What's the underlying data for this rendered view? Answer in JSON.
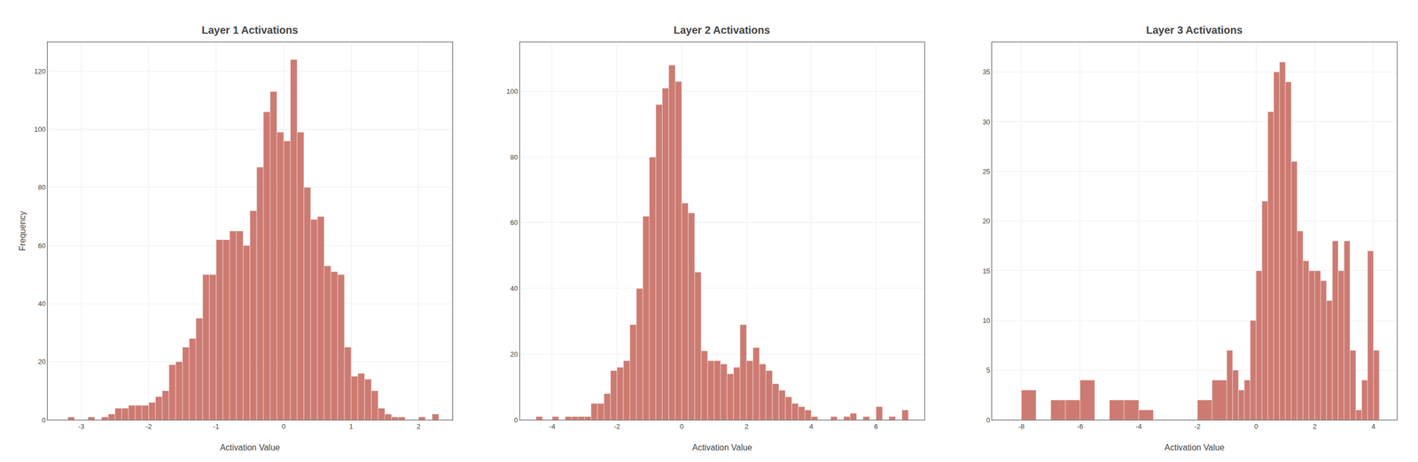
{
  "chart_data": [
    {
      "type": "bar",
      "title": "Layer 1 Activations",
      "xlabel": "Activation Value",
      "ylabel": "Frequency",
      "x": [
        -3.2,
        -3.0,
        -2.9,
        -2.8,
        -2.7,
        -2.6,
        -2.5,
        -2.4,
        -2.3,
        -2.2,
        -2.1,
        -2.0,
        -1.9,
        -1.8,
        -1.7,
        -1.6,
        -1.5,
        -1.4,
        -1.3,
        -1.2,
        -1.1,
        -1.0,
        -0.9,
        -0.8,
        -0.7,
        -0.6,
        -0.5,
        -0.4,
        -0.3,
        -0.2,
        -0.1,
        0.0,
        0.1,
        0.2,
        0.3,
        0.4,
        0.5,
        0.6,
        0.7,
        0.8,
        0.9,
        1.0,
        1.1,
        1.2,
        1.3,
        1.4,
        1.5,
        1.6,
        1.7,
        1.8,
        1.9,
        2.0,
        2.1,
        2.2
      ],
      "values": [
        1,
        0,
        1,
        0,
        1,
        2,
        4,
        4,
        5,
        5,
        5,
        6,
        8,
        10,
        19,
        20,
        25,
        28,
        35,
        50,
        50,
        62,
        62,
        65,
        65,
        60,
        72,
        87,
        106,
        113,
        99,
        96,
        124,
        99,
        80,
        69,
        70,
        53,
        51,
        50,
        25,
        15,
        16,
        14,
        10,
        4,
        2,
        1,
        1,
        0,
        0,
        1,
        0,
        2
      ],
      "widths": [
        0.1,
        0.1,
        0.1,
        0.1,
        0.1,
        0.1,
        0.1,
        0.1,
        0.1,
        0.1,
        0.1,
        0.1,
        0.1,
        0.1,
        0.1,
        0.1,
        0.1,
        0.1,
        0.1,
        0.1,
        0.1,
        0.1,
        0.1,
        0.1,
        0.1,
        0.1,
        0.1,
        0.1,
        0.1,
        0.1,
        0.1,
        0.1,
        0.1,
        0.1,
        0.1,
        0.1,
        0.1,
        0.1,
        0.1,
        0.1,
        0.1,
        0.1,
        0.1,
        0.1,
        0.1,
        0.1,
        0.1,
        0.1,
        0.1,
        0.1,
        0.1,
        0.1,
        0.1,
        0.1
      ],
      "color": "#CD7B72",
      "xlim": [
        -3.5,
        2.5
      ],
      "ylim": [
        0,
        130
      ],
      "xticks": [
        -3,
        -2,
        -1,
        0,
        1,
        2
      ],
      "yticks": [
        0,
        20,
        40,
        60,
        80,
        100,
        120
      ],
      "grid": true
    },
    {
      "type": "bar",
      "title": "Layer 2 Activations",
      "xlabel": "Activation Value",
      "x": [
        -4.5,
        -4.2,
        -4.0,
        -3.8,
        -3.6,
        -3.4,
        -3.2,
        -3.0,
        -2.8,
        -2.6,
        -2.4,
        -2.2,
        -2.0,
        -1.8,
        -1.6,
        -1.4,
        -1.2,
        -1.0,
        -0.8,
        -0.6,
        -0.4,
        -0.2,
        0.0,
        0.2,
        0.4,
        0.6,
        0.8,
        1.0,
        1.2,
        1.4,
        1.6,
        1.8,
        2.0,
        2.2,
        2.4,
        2.6,
        2.8,
        3.0,
        3.2,
        3.4,
        3.6,
        3.8,
        4.0,
        4.2,
        4.4,
        4.6,
        4.8,
        5.0,
        5.2,
        5.4,
        5.6,
        5.8,
        6.0,
        6.2,
        6.4,
        6.6,
        6.8
      ],
      "values": [
        1,
        0,
        1,
        0,
        1,
        1,
        1,
        1,
        5,
        5,
        8,
        15,
        16,
        18,
        29,
        40,
        62,
        80,
        96,
        101,
        108,
        103,
        66,
        63,
        45,
        21,
        18,
        18,
        17,
        14,
        16,
        29,
        18,
        22,
        17,
        15,
        11,
        9,
        7,
        5,
        4,
        3,
        1,
        0,
        0,
        1,
        0,
        1,
        2,
        0,
        1,
        0,
        4,
        0,
        1,
        0,
        3
      ],
      "widths": [
        0.2,
        0.2,
        0.2,
        0.2,
        0.2,
        0.2,
        0.2,
        0.2,
        0.2,
        0.2,
        0.2,
        0.2,
        0.2,
        0.2,
        0.2,
        0.2,
        0.2,
        0.2,
        0.2,
        0.2,
        0.2,
        0.2,
        0.2,
        0.2,
        0.2,
        0.2,
        0.2,
        0.2,
        0.2,
        0.2,
        0.2,
        0.2,
        0.2,
        0.2,
        0.2,
        0.2,
        0.2,
        0.2,
        0.2,
        0.2,
        0.2,
        0.2,
        0.2,
        0.2,
        0.2,
        0.2,
        0.2,
        0.2,
        0.2,
        0.2,
        0.2,
        0.2,
        0.2,
        0.2,
        0.2,
        0.2,
        0.2
      ],
      "color": "#CD7B72",
      "xlim": [
        -5.0,
        7.5
      ],
      "ylim": [
        0,
        115
      ],
      "xticks": [
        -4,
        -2,
        0,
        2,
        4,
        6
      ],
      "yticks": [
        0,
        20,
        40,
        60,
        80,
        100
      ],
      "grid": true
    },
    {
      "type": "bar",
      "title": "Layer 3 Activations",
      "xlabel": "Activation Value",
      "x": [
        -8.0,
        -7.5,
        -7.0,
        -6.5,
        -6.0,
        -5.5,
        -5.0,
        -4.5,
        -4.0,
        -3.5,
        -3.0,
        -2.5,
        -2.0,
        -1.5,
        -1.0,
        -0.8,
        -0.6,
        -0.4,
        -0.2,
        0.0,
        0.2,
        0.4,
        0.6,
        0.8,
        1.0,
        1.2,
        1.4,
        1.6,
        1.8,
        2.0,
        2.2,
        2.4,
        2.6,
        2.8,
        3.0,
        3.2,
        3.4,
        3.6,
        3.8,
        4.0
      ],
      "values": [
        3,
        0,
        2,
        2,
        4,
        0,
        2,
        2,
        1,
        0,
        0,
        0,
        2,
        4,
        7,
        5,
        3,
        4,
        10,
        15,
        22,
        31,
        35,
        36,
        34,
        26,
        19,
        16,
        15,
        15,
        14,
        12,
        18,
        15,
        18,
        7,
        1,
        4,
        17,
        7
      ],
      "widths": [
        0.5,
        0.5,
        0.5,
        0.5,
        0.5,
        0.5,
        0.5,
        0.5,
        0.5,
        0.5,
        0.5,
        0.5,
        0.5,
        0.5,
        0.2,
        0.2,
        0.2,
        0.2,
        0.2,
        0.2,
        0.2,
        0.2,
        0.2,
        0.2,
        0.2,
        0.2,
        0.2,
        0.2,
        0.2,
        0.2,
        0.2,
        0.2,
        0.2,
        0.2,
        0.2,
        0.2,
        0.2,
        0.2,
        0.2,
        0.2
      ],
      "color": "#CD7B72",
      "xlim": [
        -9.0,
        4.8
      ],
      "ylim": [
        0,
        38
      ],
      "xticks": [
        -8,
        -6,
        -4,
        -2,
        0,
        2,
        4
      ],
      "yticks": [
        0,
        5,
        10,
        15,
        20,
        25,
        30,
        35
      ],
      "grid": true
    }
  ]
}
